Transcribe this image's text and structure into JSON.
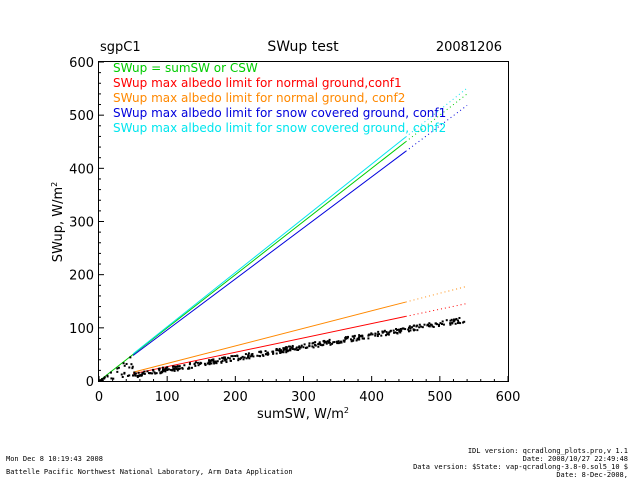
{
  "chart_data": {
    "type": "scatter",
    "site": "sgpC1",
    "title": "SWup test",
    "date": "20081206",
    "xlabel": "sumSW, W/m",
    "ylabel": "SWup, W/m",
    "unit_superscript": "2",
    "xlim": [
      0,
      600
    ],
    "ylim": [
      0,
      600
    ],
    "x_ticks": [
      "0",
      "100",
      "200",
      "300",
      "400",
      "500",
      "600"
    ],
    "y_ticks": [
      "0",
      "100",
      "200",
      "300",
      "400",
      "500",
      "600"
    ],
    "grid": false,
    "legend_position": "top-left",
    "series": [
      {
        "name": "SWup = sumSW or CSW",
        "color": "#00cc00",
        "slope": 1.0,
        "x": [
          0,
          450
        ],
        "dotted_to": 540
      },
      {
        "name": "SWup max albedo limit for normal ground,conf1",
        "color": "#ff0000",
        "slope": 0.27,
        "x": [
          50,
          450
        ],
        "dotted_to": 540
      },
      {
        "name": "SWup max albedo limit for normal ground, conf2",
        "color": "#ff8800",
        "slope": 0.33,
        "x": [
          50,
          450
        ],
        "dotted_to": 540
      },
      {
        "name": "SWup max albedo limit for snow covered ground, conf1",
        "color": "#0000dd",
        "slope": 0.96,
        "x": [
          50,
          450
        ],
        "dotted_to": 540
      },
      {
        "name": "SWup max albedo limit for snow covered ground, conf2",
        "color": "#00e5ee",
        "slope": 1.02,
        "x": [
          50,
          450
        ],
        "dotted_to": 540
      }
    ],
    "observations": {
      "color": "#000000",
      "description": "SWup measurements",
      "x_range": [
        50,
        540
      ],
      "slope_approx": 0.215
    }
  },
  "footer": {
    "timestamp": "Mon Dec  8 10:19:43 2008",
    "institution": "Battelle Pacific Northwest National Laboratory, Arm Data Application",
    "idl_version": "IDL version: qcradlong_plots.pro,v 1.1",
    "idl_date": "Date: 2008/10/27 22:49:48",
    "data_version": "Data version: $State: vap-qcradlong-3.8-0.sol5_10 $",
    "data_date": "Date: 8-Dec-2008,"
  }
}
